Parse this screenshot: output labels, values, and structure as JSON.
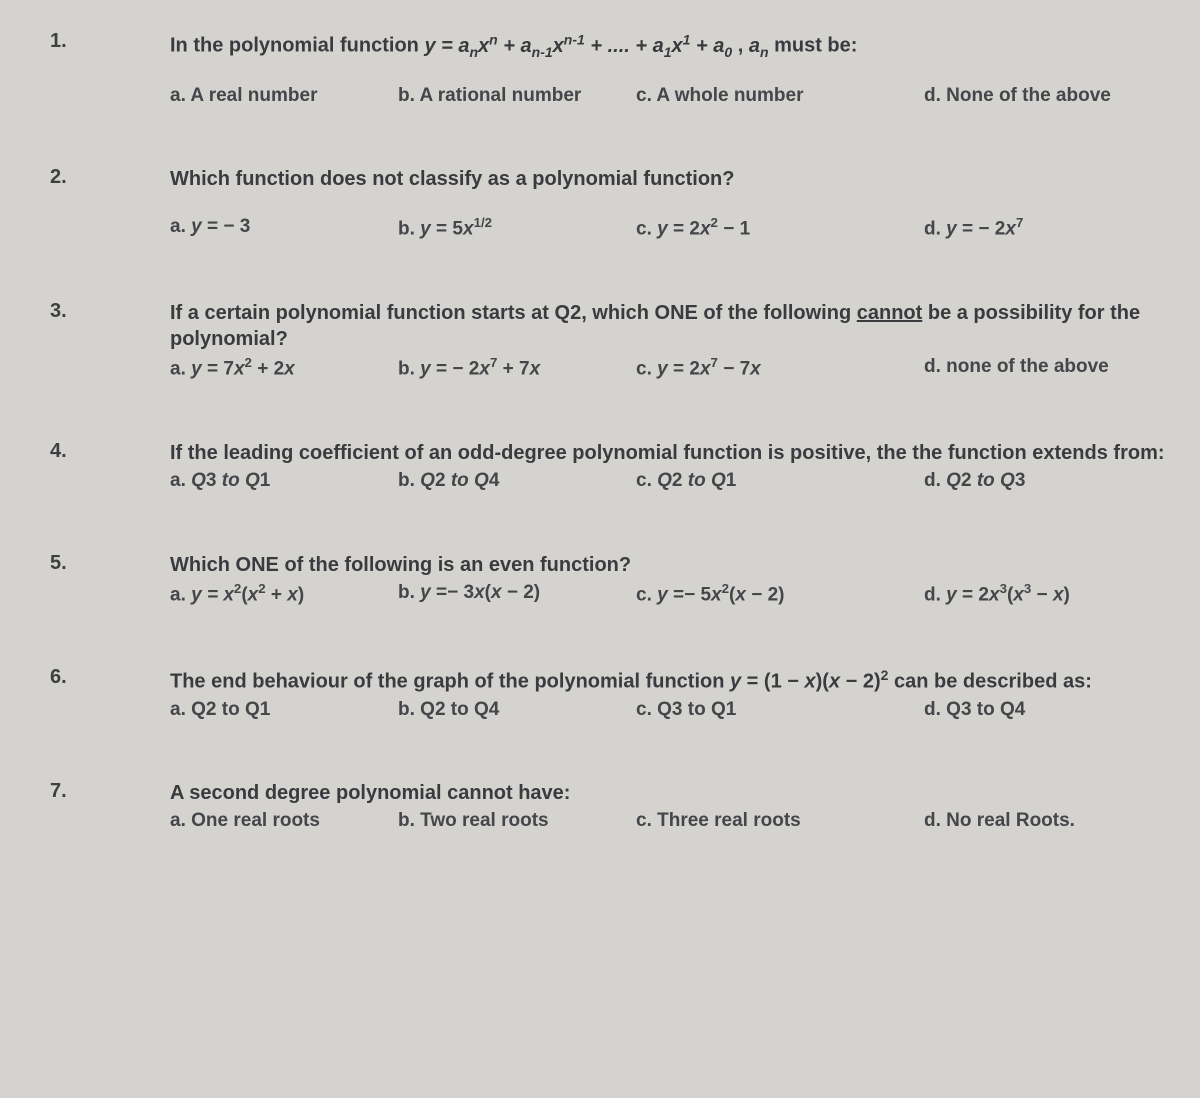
{
  "background_color": "#d4d3d0",
  "text_color": "#3a3b3e",
  "font_family": "Arial",
  "question_fontsize_pt": 15,
  "question_fontweight": "bold",
  "questions": [
    {
      "num": "1.",
      "stem_html": "In the polynomial function <span class='ital'>y = a<span class='sub'>n</span>x<span class='sup'>n</span> + a<span class='sub'>n-1</span>x<span class='sup'>n-1</span> + .... + a<span class='sub'>1</span>x<span class='sup'>1</span> + a<span class='sub'>0</span></span> , <span class='ital'>a<span class='sub'>n</span></span> must be:",
      "opts": {
        "a": "a. A real number",
        "b": "b. A rational number",
        "c": "c. A whole number",
        "d": "d. None of the above"
      }
    },
    {
      "num": "2.",
      "stem_html": "Which function does not classify as a polynomial function?",
      "opts": {
        "a": "a. <span class='ital'>y</span> = − 3",
        "b": "b. <span class='ital'>y</span> = 5<span class='ital'>x</span><span class='sup'>1/2</span>",
        "c": "c. <span class='ital'>y</span> = 2<span class='ital'>x</span><span class='sup'>2</span> − 1",
        "d": "d. <span class='ital'>y</span> = − 2<span class='ital'>x</span><span class='sup'>7</span>"
      }
    },
    {
      "num": "3.",
      "stem_html": "If a certain polynomial function starts at Q2, which ONE of the following <u>cannot</u> be a possibility for the polynomial?",
      "inline_opts": true,
      "opts": {
        "a": "a. <span class='ital'>y</span> = 7<span class='ital'>x</span><span class='sup'>2</span> + 2<span class='ital'>x</span>",
        "b": "b. <span class='ital'>y</span> = − 2<span class='ital'>x</span><span class='sup'>7</span> + 7<span class='ital'>x</span>",
        "c": "c. <span class='ital'>y</span> = 2<span class='ital'>x</span><span class='sup'>7</span> − 7<span class='ital'>x</span>",
        "d": "d. none of the above"
      }
    },
    {
      "num": "4.",
      "stem_html": "If the leading coefficient of an odd-degree polynomial function is positive, the the function extends from:",
      "opts": {
        "a": "a. <span class='ital'>Q</span>3 <span class='ital'>to Q</span>1",
        "b": "b. <span class='ital'>Q</span>2 <span class='ital'>to Q</span>4",
        "c": "c. <span class='ital'>Q</span>2 <span class='ital'>to Q</span>1",
        "d": "d. <span class='ital'>Q</span>2 <span class='ital'>to Q</span>3"
      }
    },
    {
      "num": "5.",
      "stem_html": "Which ONE of the following is an even function?",
      "opts": {
        "a": "a. <span class='ital'>y = x</span><span class='sup'>2</span>(<span class='ital'>x</span><span class='sup'>2</span> + <span class='ital'>x</span>)",
        "b": "b. <span class='ital'>y</span> =− 3<span class='ital'>x</span>(<span class='ital'>x</span> − 2)",
        "c": "c. <span class='ital'>y</span> =− 5<span class='ital'>x</span><span class='sup'>2</span>(<span class='ital'>x</span> − 2)",
        "d": "d. <span class='ital'>y</span> = 2<span class='ital'>x</span><span class='sup'>3</span>(<span class='ital'>x</span><span class='sup'>3</span> − <span class='ital'>x</span>)"
      }
    },
    {
      "num": "6.",
      "stem_html": "The end behaviour of the graph of the polynomial function <span class='ital'>y</span> = (1 − <span class='ital'>x</span>)(<span class='ital'>x</span> − 2)<span class='sup'>2</span> can be described as:",
      "opts": {
        "a": "a. Q2 to Q1",
        "b": "b. Q2 to Q4",
        "c": "c. Q3 to Q1",
        "d": "d. Q3 to Q4"
      }
    },
    {
      "num": "7.",
      "stem_html": "A second degree polynomial cannot have:",
      "opts": {
        "a": "a. One real roots",
        "b": "b. Two real roots",
        "c": "c. Three real roots",
        "d": "d. No real Roots."
      }
    }
  ]
}
